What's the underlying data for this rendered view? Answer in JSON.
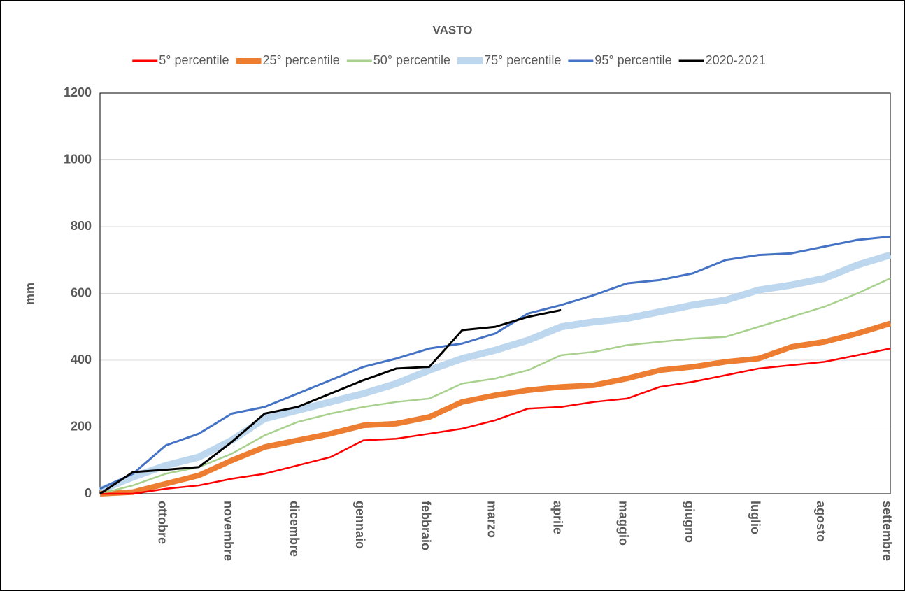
{
  "chart_data": {
    "type": "line",
    "title": "VASTO",
    "y_label": "mm",
    "categories": [
      null,
      null,
      "ottobre",
      null,
      "novembre",
      null,
      "dicembre",
      null,
      "gennaio",
      null,
      "febbraio",
      null,
      "marzo",
      null,
      "aprile",
      null,
      "maggio",
      null,
      "giugno",
      null,
      "luglio",
      null,
      "agosto",
      null,
      "settembre"
    ],
    "ylim": [
      0,
      1200
    ],
    "yticks": [
      0,
      200,
      400,
      600,
      800,
      1000,
      1200
    ],
    "grid": true,
    "legend": "top",
    "series": [
      {
        "name": "5° percentile",
        "color": "#ff0000",
        "values": [
          0,
          0,
          15,
          25,
          45,
          60,
          85,
          110,
          160,
          165,
          180,
          195,
          220,
          255,
          260,
          275,
          285,
          320,
          335,
          355,
          375,
          385,
          395,
          415,
          435
        ]
      },
      {
        "name": "25° percentile",
        "color": "#ed7d31",
        "values": [
          0,
          5,
          30,
          55,
          100,
          140,
          160,
          180,
          205,
          210,
          230,
          275,
          295,
          310,
          320,
          325,
          345,
          370,
          380,
          395,
          405,
          440,
          455,
          480,
          510
        ]
      },
      {
        "name": "50° percentile",
        "color": "#a9d18e",
        "values": [
          0,
          25,
          60,
          80,
          120,
          175,
          215,
          240,
          260,
          275,
          285,
          330,
          345,
          370,
          415,
          425,
          445,
          455,
          465,
          470,
          500,
          530,
          560,
          600,
          645
        ]
      },
      {
        "name": "75° percentile",
        "color": "#bdd7ee",
        "values": [
          10,
          50,
          85,
          110,
          160,
          225,
          250,
          275,
          300,
          330,
          370,
          405,
          430,
          460,
          500,
          515,
          525,
          545,
          565,
          580,
          610,
          625,
          645,
          685,
          715
        ]
      },
      {
        "name": "95° percentile",
        "color": "#4472c4",
        "values": [
          15,
          60,
          145,
          180,
          240,
          260,
          300,
          340,
          380,
          405,
          435,
          450,
          480,
          540,
          565,
          595,
          630,
          640,
          660,
          700,
          715,
          720,
          740,
          760,
          770
        ]
      },
      {
        "name": "2020-2021",
        "color": "#000000",
        "values": [
          0,
          65,
          72,
          80,
          155,
          240,
          260,
          300,
          340,
          375,
          380,
          490,
          500,
          530,
          550,
          null,
          null,
          null,
          null,
          null,
          null,
          null,
          null,
          null,
          null
        ]
      }
    ]
  }
}
